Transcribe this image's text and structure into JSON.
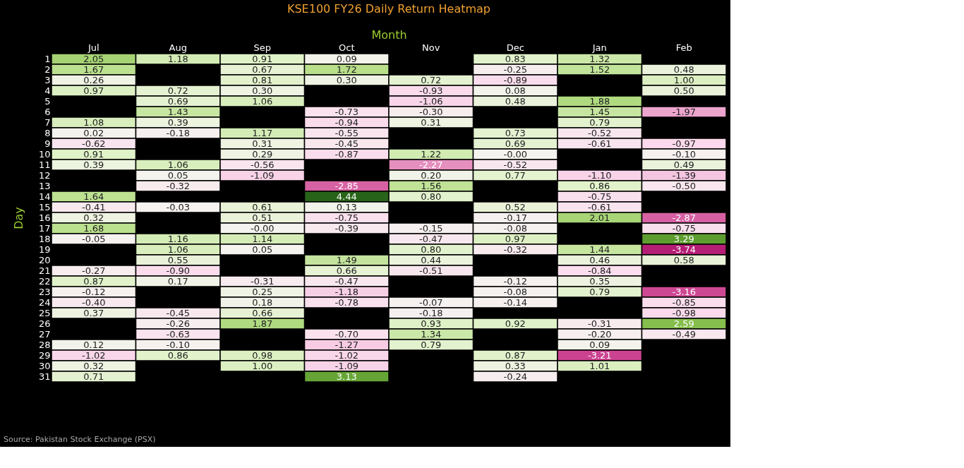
{
  "chart_data": {
    "type": "heatmap",
    "title": "KSE100 FY26 Daily Return Heatmap",
    "xlabel": "Month",
    "ylabel": "Day",
    "categories": [
      "Jul",
      "Aug",
      "Sep",
      "Oct",
      "Nov",
      "Dec",
      "Jan",
      "Feb"
    ],
    "y_categories": [
      "1",
      "2",
      "3",
      "4",
      "5",
      "6",
      "7",
      "8",
      "9",
      "10",
      "11",
      "12",
      "13",
      "14",
      "15",
      "16",
      "17",
      "18",
      "19",
      "20",
      "21",
      "22",
      "23",
      "24",
      "25",
      "26",
      "27",
      "28",
      "29",
      "30",
      "31"
    ],
    "cells": [
      [
        2.05,
        1.18,
        0.91,
        0.09,
        null,
        0.83,
        1.32,
        null
      ],
      [
        1.67,
        null,
        0.67,
        1.72,
        null,
        -0.25,
        1.52,
        0.48
      ],
      [
        0.26,
        null,
        0.81,
        0.3,
        0.72,
        -0.89,
        null,
        1.0
      ],
      [
        0.97,
        0.72,
        0.3,
        null,
        -0.93,
        0.08,
        null,
        0.5
      ],
      [
        null,
        0.69,
        1.06,
        null,
        -1.06,
        0.48,
        1.88,
        null
      ],
      [
        null,
        1.43,
        null,
        -0.73,
        -0.3,
        null,
        1.45,
        -1.97
      ],
      [
        1.08,
        0.39,
        null,
        -0.94,
        0.31,
        null,
        0.79,
        null
      ],
      [
        0.02,
        -0.18,
        1.17,
        -0.55,
        null,
        0.73,
        -0.52,
        null
      ],
      [
        -0.62,
        null,
        0.31,
        -0.45,
        null,
        0.69,
        -0.61,
        -0.97
      ],
      [
        0.91,
        null,
        0.29,
        -0.87,
        1.22,
        -0.0,
        null,
        -0.1
      ],
      [
        0.39,
        1.06,
        -0.56,
        null,
        -2.27,
        -0.52,
        null,
        0.49
      ],
      [
        null,
        0.05,
        -1.09,
        null,
        0.2,
        0.77,
        -1.1,
        -1.39
      ],
      [
        null,
        -0.32,
        null,
        -2.85,
        1.56,
        null,
        0.86,
        -0.5
      ],
      [
        1.64,
        null,
        null,
        4.44,
        0.8,
        null,
        -0.75,
        null
      ],
      [
        -0.41,
        -0.03,
        0.61,
        0.13,
        null,
        0.52,
        -0.61,
        null
      ],
      [
        0.32,
        null,
        0.51,
        -0.75,
        null,
        -0.17,
        2.01,
        -2.87
      ],
      [
        1.68,
        null,
        -0.0,
        -0.39,
        -0.15,
        -0.08,
        null,
        -0.75
      ],
      [
        -0.05,
        1.16,
        1.14,
        null,
        -0.47,
        0.97,
        null,
        3.29
      ],
      [
        null,
        1.06,
        0.05,
        null,
        0.8,
        -0.32,
        1.44,
        -3.74
      ],
      [
        null,
        0.55,
        null,
        1.49,
        0.44,
        null,
        0.46,
        0.58
      ],
      [
        -0.27,
        -0.9,
        null,
        0.66,
        -0.51,
        null,
        -0.84,
        null
      ],
      [
        0.87,
        0.17,
        -0.31,
        -0.47,
        null,
        -0.12,
        0.35,
        null
      ],
      [
        -0.12,
        null,
        0.25,
        -1.18,
        null,
        -0.08,
        0.79,
        -3.16
      ],
      [
        -0.4,
        null,
        0.18,
        -0.78,
        -0.07,
        -0.14,
        null,
        -0.85
      ],
      [
        0.37,
        -0.45,
        0.66,
        null,
        -0.18,
        null,
        null,
        -0.98
      ],
      [
        null,
        -0.26,
        1.87,
        null,
        0.93,
        0.92,
        -0.31,
        2.59
      ],
      [
        null,
        -0.63,
        null,
        -0.7,
        1.34,
        null,
        -0.2,
        -0.49
      ],
      [
        0.12,
        -0.1,
        null,
        -1.27,
        0.79,
        null,
        0.09,
        null
      ],
      [
        -1.02,
        0.86,
        0.98,
        -1.02,
        null,
        0.87,
        -3.21,
        null
      ],
      [
        0.32,
        null,
        1.0,
        -1.09,
        null,
        0.33,
        1.01,
        null
      ],
      [
        0.71,
        null,
        null,
        3.13,
        null,
        -0.24,
        null,
        null
      ]
    ],
    "cell_labels": [
      [
        "2.05",
        "1.18",
        "0.91",
        "0.09",
        null,
        "0.83",
        "1.32",
        null
      ],
      [
        "1.67",
        null,
        "0.67",
        "1.72",
        null,
        "-0.25",
        "1.52",
        "0.48"
      ],
      [
        "0.26",
        null,
        "0.81",
        "0.30",
        "0.72",
        "-0.89",
        null,
        "1.00"
      ],
      [
        "0.97",
        "0.72",
        "0.30",
        null,
        "-0.93",
        "0.08",
        null,
        "0.50"
      ],
      [
        null,
        "0.69",
        "1.06",
        null,
        "-1.06",
        "0.48",
        "1.88",
        null
      ],
      [
        null,
        "1.43",
        null,
        "-0.73",
        "-0.30",
        null,
        "1.45",
        "-1.97"
      ],
      [
        "1.08",
        "0.39",
        null,
        "-0.94",
        "0.31",
        null,
        "0.79",
        null
      ],
      [
        "0.02",
        "-0.18",
        "1.17",
        "-0.55",
        null,
        "0.73",
        "-0.52",
        null
      ],
      [
        "-0.62",
        null,
        "0.31",
        "-0.45",
        null,
        "0.69",
        "-0.61",
        "-0.97"
      ],
      [
        "0.91",
        null,
        "0.29",
        "-0.87",
        "1.22",
        "-0.00",
        null,
        "-0.10"
      ],
      [
        "0.39",
        "1.06",
        "-0.56",
        null,
        "-2.27",
        "-0.52",
        null,
        "0.49"
      ],
      [
        null,
        "0.05",
        "-1.09",
        null,
        "0.20",
        "0.77",
        "-1.10",
        "-1.39"
      ],
      [
        null,
        "-0.32",
        null,
        "-2.85",
        "1.56",
        null,
        "0.86",
        "-0.50"
      ],
      [
        "1.64",
        null,
        null,
        "4.44",
        "0.80",
        null,
        "-0.75",
        null
      ],
      [
        "-0.41",
        "-0.03",
        "0.61",
        "0.13",
        null,
        "0.52",
        "-0.61",
        null
      ],
      [
        "0.32",
        null,
        "0.51",
        "-0.75",
        null,
        "-0.17",
        "2.01",
        "-2.87"
      ],
      [
        "1.68",
        null,
        "-0.00",
        "-0.39",
        "-0.15",
        "-0.08",
        null,
        "-0.75"
      ],
      [
        "-0.05",
        "1.16",
        "1.14",
        null,
        "-0.47",
        "0.97",
        null,
        "3.29"
      ],
      [
        null,
        "1.06",
        "0.05",
        null,
        "0.80",
        "-0.32",
        "1.44",
        "-3.74"
      ],
      [
        null,
        "0.55",
        null,
        "1.49",
        "0.44",
        null,
        "0.46",
        "0.58"
      ],
      [
        "-0.27",
        "-0.90",
        null,
        "0.66",
        "-0.51",
        null,
        "-0.84",
        null
      ],
      [
        "0.87",
        "0.17",
        "-0.31",
        "-0.47",
        null,
        "-0.12",
        "0.35",
        null
      ],
      [
        "-0.12",
        null,
        "0.25",
        "-1.18",
        null,
        "-0.08",
        "0.79",
        "-3.16"
      ],
      [
        "-0.40",
        null,
        "0.18",
        "-0.78",
        "-0.07",
        "-0.14",
        null,
        "-0.85"
      ],
      [
        "0.37",
        "-0.45",
        "0.66",
        null,
        "-0.18",
        null,
        null,
        "-0.98"
      ],
      [
        null,
        "-0.26",
        "1.87",
        null,
        "0.93",
        "0.92",
        "-0.31",
        "2.59"
      ],
      [
        null,
        "-0.63",
        null,
        "-0.70",
        "1.34",
        null,
        "-0.20",
        "-0.49"
      ],
      [
        "0.12",
        "-0.10",
        null,
        "-1.27",
        "0.79",
        null,
        "0.09",
        null
      ],
      [
        "-1.02",
        "0.86",
        "0.98",
        "-1.02",
        null,
        "0.87",
        "-3.21",
        null
      ],
      [
        "0.32",
        null,
        "1.00",
        "-1.09",
        null,
        "0.33",
        "1.01",
        null
      ],
      [
        "0.71",
        null,
        null,
        "3.13",
        null,
        "-0.24",
        null,
        null
      ]
    ],
    "annotations": [
      "Source: Pakistan Stock Exchange (PSX)"
    ]
  }
}
